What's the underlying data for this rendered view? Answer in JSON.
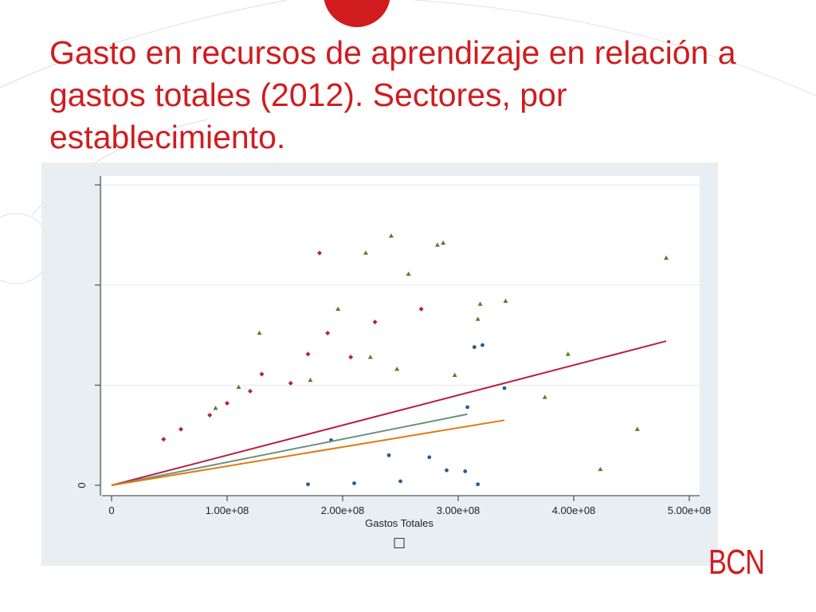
{
  "slide": {
    "title": "Gasto en recursos de aprendizaje en relación a gastos totales (2012). Sectores, por establecimiento.",
    "logo_text": "BCN",
    "accent_color": "#d01c1f"
  },
  "chart_data": {
    "type": "scatter",
    "title": "",
    "xlabel": "Gastos Totales",
    "ylabel": "",
    "xlim": [
      0,
      500000000
    ],
    "ylim": [
      0,
      3000000
    ],
    "xticks": [
      {
        "value": 0,
        "label": "0"
      },
      {
        "value": 100000000,
        "label": "1.00e+08"
      },
      {
        "value": 200000000,
        "label": "2.00e+08"
      },
      {
        "value": 300000000,
        "label": "3.00e+08"
      },
      {
        "value": 400000000,
        "label": "4.00e+08"
      },
      {
        "value": 500000000,
        "label": "5.00e+08"
      }
    ],
    "yticks": [
      {
        "value": 0,
        "label": "0"
      },
      {
        "value": 1000000,
        "label": ""
      },
      {
        "value": 2000000,
        "label": ""
      },
      {
        "value": 3000000,
        "label": ""
      }
    ],
    "grid": true,
    "legend_symbol": "□",
    "series": [
      {
        "marker": "diamond",
        "color": "#b5223f",
        "points": [
          [
            180000000,
            2320000
          ],
          [
            268000000,
            1760000
          ],
          [
            228000000,
            1630000
          ],
          [
            187000000,
            1520000
          ],
          [
            207000000,
            1280000
          ],
          [
            130000000,
            1110000
          ],
          [
            170000000,
            1310000
          ],
          [
            155000000,
            1020000
          ],
          [
            120000000,
            940000
          ],
          [
            100000000,
            820000
          ],
          [
            85000000,
            700000
          ],
          [
            60000000,
            560000
          ],
          [
            45000000,
            460000
          ]
        ]
      },
      {
        "marker": "triangle",
        "color": "#5a7d2a",
        "points": [
          [
            242000000,
            2490000
          ],
          [
            220000000,
            2320000
          ],
          [
            282000000,
            2400000
          ],
          [
            287000000,
            2420000
          ],
          [
            257000000,
            2110000
          ],
          [
            480000000,
            2270000
          ],
          [
            196000000,
            1760000
          ],
          [
            341000000,
            1840000
          ],
          [
            319000000,
            1810000
          ],
          [
            317000000,
            1660000
          ],
          [
            128000000,
            1520000
          ],
          [
            395000000,
            1310000
          ],
          [
            224000000,
            1280000
          ],
          [
            247000000,
            1160000
          ],
          [
            172000000,
            1050000
          ],
          [
            375000000,
            880000
          ],
          [
            297000000,
            1100000
          ],
          [
            455000000,
            560000
          ],
          [
            423000000,
            160000
          ],
          [
            110000000,
            980000
          ],
          [
            90000000,
            770000
          ]
        ]
      },
      {
        "marker": "circle",
        "color": "#2a5c8c",
        "points": [
          [
            314000000,
            1380000
          ],
          [
            321000000,
            1400000
          ],
          [
            340000000,
            970000
          ],
          [
            308000000,
            780000
          ],
          [
            306000000,
            140000
          ],
          [
            290000000,
            150000
          ],
          [
            275000000,
            280000
          ],
          [
            250000000,
            40000
          ],
          [
            240000000,
            300000
          ],
          [
            210000000,
            20000
          ],
          [
            190000000,
            450000
          ],
          [
            170000000,
            10000
          ],
          [
            317000000,
            10000
          ]
        ]
      }
    ],
    "fit_lines": [
      {
        "color": "#b5223f",
        "x": [
          0,
          480000000
        ],
        "y": [
          0,
          1440000
        ]
      },
      {
        "color": "#6b9080",
        "x": [
          0,
          308000000
        ],
        "y": [
          0,
          710000
        ]
      },
      {
        "color": "#e07a10",
        "x": [
          0,
          340000000
        ],
        "y": [
          0,
          650000
        ]
      }
    ]
  }
}
